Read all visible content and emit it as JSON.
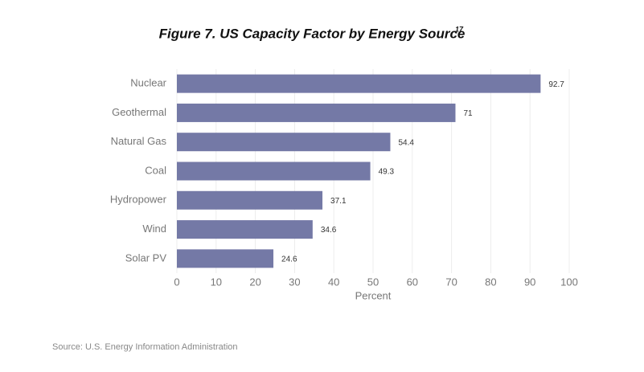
{
  "chart_data": {
    "type": "bar",
    "orientation": "horizontal",
    "title": "Figure 7. US Capacity Factor by Energy Source",
    "title_superscript": "17",
    "categories": [
      "Nuclear",
      "Geothermal",
      "Natural Gas",
      "Coal",
      "Hydropower",
      "Wind",
      "Solar PV"
    ],
    "values": [
      92.7,
      71,
      54.4,
      49.3,
      37.1,
      34.6,
      24.6
    ],
    "color": "#7479a6",
    "x_label": "Percent",
    "xlim": [
      0,
      100
    ],
    "xticks": [
      0,
      10,
      20,
      30,
      40,
      50,
      60,
      70,
      80,
      90,
      100
    ],
    "grid": true,
    "source": "Source: U.S. Energy Information Administration"
  }
}
